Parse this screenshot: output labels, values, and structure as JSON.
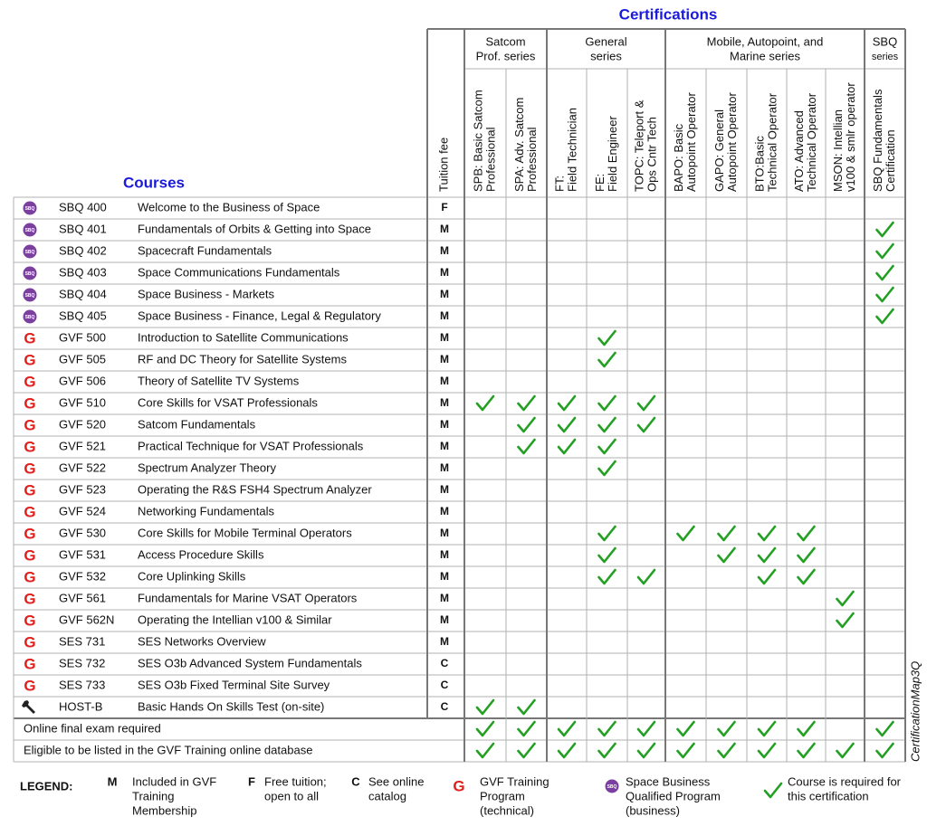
{
  "title": "Certifications",
  "courses_label": "Courses",
  "fee_label": "Tuition fee",
  "groups": [
    {
      "lines": [
        "Satcom",
        "Prof. series"
      ],
      "columns": [
        {
          "lines": [
            "SPB: Basic Satcom",
            "Professional"
          ]
        },
        {
          "lines": [
            "SPA: Adv. Satcom",
            "Professional"
          ]
        }
      ]
    },
    {
      "lines": [
        "General",
        "series"
      ],
      "columns": [
        {
          "lines": [
            "FT:",
            "Field Technician"
          ]
        },
        {
          "lines": [
            "FE:",
            "Field Engineer"
          ]
        },
        {
          "lines": [
            "TOPC: Teleport &",
            "Ops Cntr Tech"
          ]
        }
      ]
    },
    {
      "lines": [
        "Mobile, Autopoint, and",
        "Marine series"
      ],
      "columns": [
        {
          "lines": [
            "BAPO: Basic",
            "Autopoint Operator"
          ]
        },
        {
          "lines": [
            "GAPO: General",
            "Autopoint Operator"
          ]
        },
        {
          "lines": [
            "BTO:Basic",
            "Technical Operator"
          ]
        },
        {
          "lines": [
            "ATO: Advanced",
            "Technical Operator"
          ]
        },
        {
          "lines": [
            "MSON: Intellian",
            "v100 & smlr operator"
          ]
        }
      ]
    },
    {
      "lines": [
        "SBQ",
        "series"
      ],
      "columns": [
        {
          "lines": [
            "SBQ Fundamentals",
            "Certification"
          ]
        }
      ]
    }
  ],
  "rows": [
    {
      "icon": "SBQ",
      "code": "SBQ 400",
      "name": "Welcome to the Business of Space",
      "fee": "F",
      "checks": [
        false,
        false,
        false,
        false,
        false,
        false,
        false,
        false,
        false,
        false,
        false
      ]
    },
    {
      "icon": "SBQ",
      "code": "SBQ 401",
      "name": "Fundamentals of Orbits & Getting into Space",
      "fee": "M",
      "checks": [
        false,
        false,
        false,
        false,
        false,
        false,
        false,
        false,
        false,
        false,
        true
      ]
    },
    {
      "icon": "SBQ",
      "code": "SBQ 402",
      "name": "Spacecraft Fundamentals",
      "fee": "M",
      "checks": [
        false,
        false,
        false,
        false,
        false,
        false,
        false,
        false,
        false,
        false,
        true
      ]
    },
    {
      "icon": "SBQ",
      "code": "SBQ 403",
      "name": "Space Communications Fundamentals",
      "fee": "M",
      "checks": [
        false,
        false,
        false,
        false,
        false,
        false,
        false,
        false,
        false,
        false,
        true
      ]
    },
    {
      "icon": "SBQ",
      "code": "SBQ 404",
      "name": "Space Business - Markets",
      "fee": "M",
      "checks": [
        false,
        false,
        false,
        false,
        false,
        false,
        false,
        false,
        false,
        false,
        true
      ]
    },
    {
      "icon": "SBQ",
      "code": "SBQ 405",
      "name": "Space Business - Finance, Legal & Regulatory",
      "fee": "M",
      "checks": [
        false,
        false,
        false,
        false,
        false,
        false,
        false,
        false,
        false,
        false,
        true
      ]
    },
    {
      "icon": "G",
      "code": "GVF 500",
      "name": "Introduction to Satellite Communications",
      "fee": "M",
      "checks": [
        false,
        false,
        false,
        true,
        false,
        false,
        false,
        false,
        false,
        false,
        false
      ]
    },
    {
      "icon": "G",
      "code": "GVF 505",
      "name": "RF and DC Theory for Satellite Systems",
      "fee": "M",
      "checks": [
        false,
        false,
        false,
        true,
        false,
        false,
        false,
        false,
        false,
        false,
        false
      ]
    },
    {
      "icon": "G",
      "code": "GVF 506",
      "name": "Theory of Satellite TV Systems",
      "fee": "M",
      "checks": [
        false,
        false,
        false,
        false,
        false,
        false,
        false,
        false,
        false,
        false,
        false
      ]
    },
    {
      "icon": "G",
      "code": "GVF 510",
      "name": "Core Skills for VSAT Professionals",
      "fee": "M",
      "checks": [
        true,
        true,
        true,
        true,
        true,
        false,
        false,
        false,
        false,
        false,
        false
      ]
    },
    {
      "icon": "G",
      "code": "GVF 520",
      "name": "Satcom Fundamentals",
      "fee": "M",
      "checks": [
        false,
        true,
        true,
        true,
        true,
        false,
        false,
        false,
        false,
        false,
        false
      ]
    },
    {
      "icon": "G",
      "code": "GVF 521",
      "name": "Practical Technique for VSAT Professionals",
      "fee": "M",
      "checks": [
        false,
        true,
        true,
        true,
        false,
        false,
        false,
        false,
        false,
        false,
        false
      ]
    },
    {
      "icon": "G",
      "code": "GVF 522",
      "name": "Spectrum Analyzer Theory",
      "fee": "M",
      "checks": [
        false,
        false,
        false,
        true,
        false,
        false,
        false,
        false,
        false,
        false,
        false
      ]
    },
    {
      "icon": "G",
      "code": "GVF 523",
      "name": "Operating the R&S FSH4 Spectrum Analyzer",
      "fee": "M",
      "checks": [
        false,
        false,
        false,
        false,
        false,
        false,
        false,
        false,
        false,
        false,
        false
      ]
    },
    {
      "icon": "G",
      "code": "GVF 524",
      "name": "Networking Fundamentals",
      "fee": "M",
      "checks": [
        false,
        false,
        false,
        false,
        false,
        false,
        false,
        false,
        false,
        false,
        false
      ]
    },
    {
      "icon": "G",
      "code": "GVF 530",
      "name": "Core Skills for Mobile Terminal Operators",
      "fee": "M",
      "checks": [
        false,
        false,
        false,
        true,
        false,
        true,
        true,
        true,
        true,
        false,
        false
      ]
    },
    {
      "icon": "G",
      "code": "GVF 531",
      "name": "Access Procedure Skills",
      "fee": "M",
      "checks": [
        false,
        false,
        false,
        true,
        false,
        false,
        true,
        true,
        true,
        false,
        false
      ]
    },
    {
      "icon": "G",
      "code": "GVF 532",
      "name": "Core Uplinking Skills",
      "fee": "M",
      "checks": [
        false,
        false,
        false,
        true,
        true,
        false,
        false,
        true,
        true,
        false,
        false
      ]
    },
    {
      "icon": "G",
      "code": "GVF 561",
      "name": "Fundamentals for Marine VSAT Operators",
      "fee": "M",
      "checks": [
        false,
        false,
        false,
        false,
        false,
        false,
        false,
        false,
        false,
        true,
        false
      ]
    },
    {
      "icon": "G",
      "code": "GVF 562N",
      "name": "Operating the Intellian v100 & Similar",
      "fee": "M",
      "checks": [
        false,
        false,
        false,
        false,
        false,
        false,
        false,
        false,
        false,
        true,
        false
      ]
    },
    {
      "icon": "G",
      "code": "SES 731",
      "name": "SES Networks Overview",
      "fee": "M",
      "checks": [
        false,
        false,
        false,
        false,
        false,
        false,
        false,
        false,
        false,
        false,
        false
      ]
    },
    {
      "icon": "G",
      "code": "SES 732",
      "name": "SES O3b Advanced System Fundamentals",
      "fee": "C",
      "checks": [
        false,
        false,
        false,
        false,
        false,
        false,
        false,
        false,
        false,
        false,
        false
      ]
    },
    {
      "icon": "G",
      "code": "SES 733",
      "name": "SES O3b Fixed Terminal Site Survey",
      "fee": "C",
      "checks": [
        false,
        false,
        false,
        false,
        false,
        false,
        false,
        false,
        false,
        false,
        false
      ]
    },
    {
      "icon": "tool",
      "code": "HOST-B",
      "name": "Basic Hands On Skills Test (on-site)",
      "fee": "C",
      "checks": [
        true,
        true,
        false,
        false,
        false,
        false,
        false,
        false,
        false,
        false,
        false
      ]
    }
  ],
  "footer_rows": [
    {
      "label": "Online final exam required",
      "checks": [
        true,
        true,
        true,
        true,
        true,
        true,
        true,
        true,
        true,
        false,
        true
      ]
    },
    {
      "label": "Eligible to be listed in the GVF Training online database",
      "checks": [
        true,
        true,
        true,
        true,
        true,
        true,
        true,
        true,
        true,
        true,
        true
      ]
    }
  ],
  "legend": {
    "title": "LEGEND:",
    "items": [
      {
        "key": "M",
        "lines": [
          "Included in GVF",
          "Training",
          "Membership"
        ]
      },
      {
        "key": "F",
        "lines": [
          "Free tuition;",
          "open to all"
        ]
      },
      {
        "key": "C",
        "lines": [
          "See online",
          "catalog"
        ]
      },
      {
        "icon": "G",
        "lines": [
          "GVF Training",
          "Program",
          "(technical)"
        ]
      },
      {
        "icon": "SBQ",
        "lines": [
          "Space Business",
          "Qualified Program",
          "(business)"
        ]
      },
      {
        "icon": "check",
        "lines": [
          "Course is required for",
          "this certification"
        ]
      }
    ]
  },
  "side_label": "CertificationMap3Q"
}
